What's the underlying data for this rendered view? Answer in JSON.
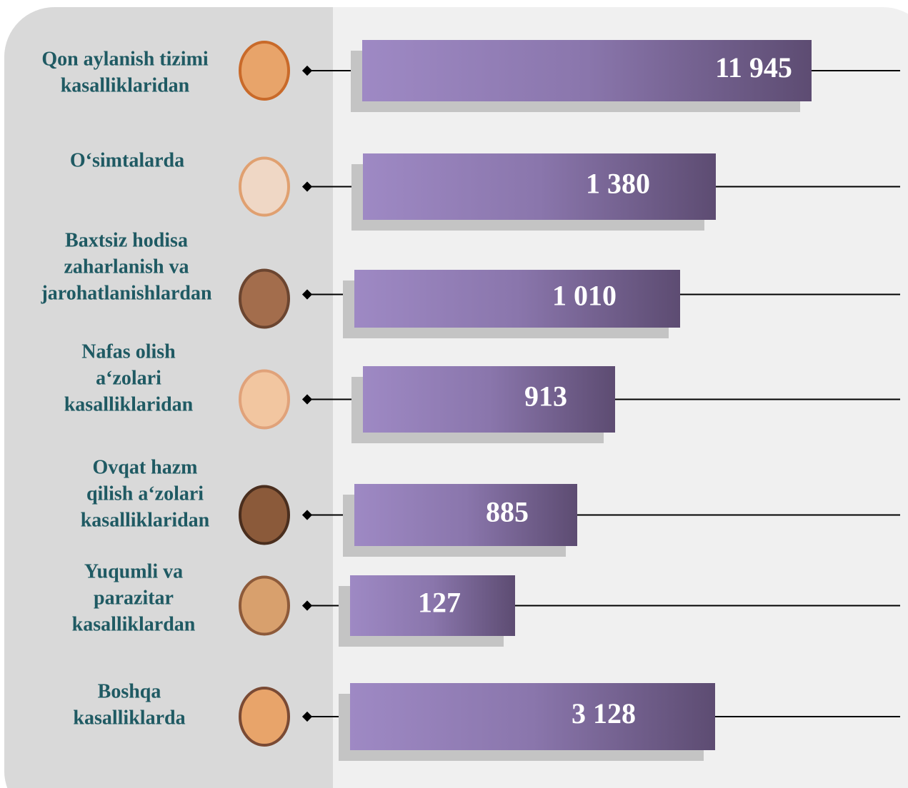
{
  "items": [
    {
      "label": [
        "Qon aylanish tizimi",
        "kasalliklaridan"
      ],
      "value": "11 945"
    },
    {
      "label": [
        "O‘simtalarda"
      ],
      "value": "1 380"
    },
    {
      "label": [
        "Baxtsiz hodisa",
        "zaharlanish va",
        "jarohatlanishlardan"
      ],
      "value": "1 010"
    },
    {
      "label": [
        "Nafas olish",
        "a‘zolari",
        "kasalliklaridan"
      ],
      "value": "913"
    },
    {
      "label": [
        "Ovqat hazm",
        "qilish a‘zolari",
        "kasalliklaridan"
      ],
      "value": "885"
    },
    {
      "label": [
        "Yuqumli va",
        "parazitar",
        "kasalliklardan"
      ],
      "value": "127"
    },
    {
      "label": [
        "Boshqa",
        "kasalliklarda"
      ],
      "value": "3 128"
    }
  ]
}
